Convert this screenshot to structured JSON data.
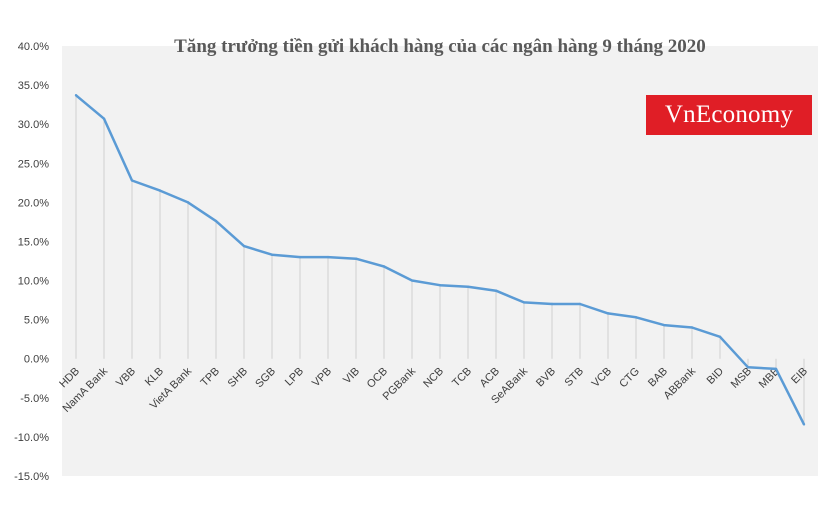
{
  "brand": {
    "logo_text": "VnEconomy",
    "color": "#e01e26"
  },
  "chart_data": {
    "type": "line",
    "title": "Tăng trưởng tiền gửi khách hàng của các ngân hàng 9 tháng 2020",
    "xlabel": "",
    "ylabel": "",
    "ylim": [
      -15,
      40
    ],
    "y_ticks": [
      "40.0%",
      "35.0%",
      "30.0%",
      "25.0%",
      "20.0%",
      "15.0%",
      "10.0%",
      "5.0%",
      "0.0%",
      "-5.0%",
      "-10.0%",
      "-15.0%"
    ],
    "y_tick_values": [
      40,
      35,
      30,
      25,
      20,
      15,
      10,
      5,
      0,
      -5,
      -10,
      -15
    ],
    "categories": [
      "HDB",
      "NamA Bank",
      "VBB",
      "KLB",
      "VietA Bank",
      "TPB",
      "SHB",
      "SGB",
      "LPB",
      "VPB",
      "VIB",
      "OCB",
      "PGBank",
      "NCB",
      "TCB",
      "ACB",
      "SeABank",
      "BVB",
      "STB",
      "VCB",
      "CTG",
      "BAB",
      "ABBank",
      "BID",
      "MSB",
      "MBB",
      "EIB"
    ],
    "values": [
      33.7,
      30.7,
      22.8,
      21.5,
      20.0,
      17.6,
      14.4,
      13.3,
      13.0,
      13.0,
      12.8,
      11.8,
      10.0,
      9.4,
      9.2,
      8.7,
      7.2,
      7.0,
      7.0,
      5.8,
      5.3,
      4.3,
      4.0,
      2.8,
      -1.1,
      -1.3,
      -8.4
    ],
    "line_color": "#5b9bd5",
    "plot_background": "#f2f2f2",
    "grid": false,
    "drop_lines": true,
    "legend": "none"
  }
}
